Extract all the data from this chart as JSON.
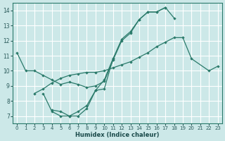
{
  "xlabel": "Humidex (Indice chaleur)",
  "bg_color": "#cce8e8",
  "grid_color": "#ffffff",
  "line_color": "#2a7a6a",
  "xlim": [
    -0.5,
    23.5
  ],
  "ylim": [
    6.5,
    14.5
  ],
  "xticks": [
    0,
    1,
    2,
    3,
    4,
    5,
    6,
    7,
    8,
    9,
    10,
    11,
    12,
    13,
    14,
    15,
    16,
    17,
    18,
    19,
    20,
    21,
    22,
    23
  ],
  "yticks": [
    7,
    8,
    9,
    10,
    11,
    12,
    13,
    14
  ],
  "lineA_x": [
    0,
    1,
    2,
    3,
    4,
    5,
    6,
    7,
    8,
    9,
    10,
    11,
    12,
    13,
    14,
    15,
    16,
    17,
    18,
    19,
    20,
    21,
    22,
    23
  ],
  "lineA_y": [
    11.2,
    10.0,
    10.0,
    9.7,
    9.4,
    9.1,
    9.25,
    9.1,
    8.9,
    9.0,
    9.3,
    10.7,
    12.0,
    12.5,
    13.4,
    13.9,
    13.9,
    14.2,
    13.5,
    null,
    null,
    null,
    null,
    null
  ],
  "lineB_x": [
    2,
    3,
    4,
    5,
    6,
    7,
    8,
    9,
    10,
    11,
    12,
    13,
    14,
    15,
    16,
    17,
    18,
    19,
    20,
    22,
    23
  ],
  "lineB_y": [
    8.5,
    8.8,
    9.2,
    9.5,
    9.7,
    9.8,
    9.9,
    9.9,
    10.0,
    10.2,
    10.4,
    10.6,
    10.9,
    11.2,
    11.6,
    11.9,
    12.2,
    12.2,
    10.8,
    10.0,
    10.3
  ],
  "lineC_x": [
    3,
    4,
    5,
    6,
    7,
    8,
    9,
    10,
    11,
    12,
    13,
    14,
    15,
    16,
    17
  ],
  "lineC_y": [
    8.5,
    7.3,
    7.0,
    7.0,
    7.3,
    7.7,
    8.7,
    8.8,
    10.8,
    12.1,
    12.6,
    13.4,
    13.9,
    13.9,
    14.2
  ],
  "lineD_x": [
    4,
    5,
    6,
    7,
    8,
    9,
    10,
    11
  ],
  "lineD_y": [
    7.4,
    7.3,
    7.0,
    7.0,
    7.5,
    8.7,
    9.4,
    10.8
  ]
}
